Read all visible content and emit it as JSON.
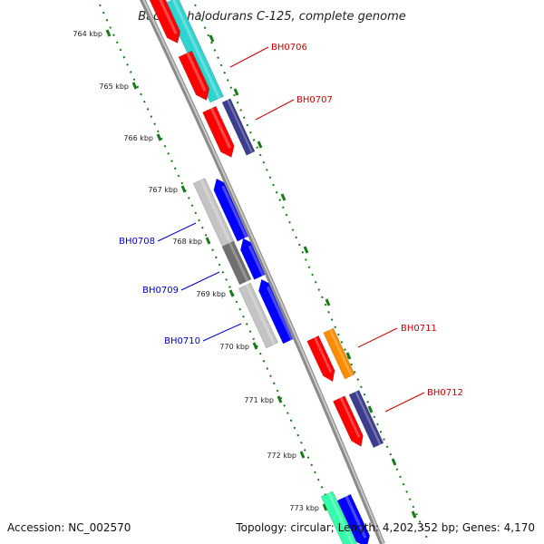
{
  "title": "Bacillus halodurans C-125, complete genome",
  "footer": {
    "accession": "Accession: NC_002570",
    "summary": "Topology: circular; Length: 4,202,352 bp; Genes: 4,170"
  },
  "ticks": [
    "764 kbp",
    "765 kbp",
    "766 kbp",
    "767 kbp",
    "768 kbp",
    "769 kbp",
    "770 kbp",
    "771 kbp",
    "772 kbp",
    "773 kbp"
  ],
  "gene_labels": {
    "forward": [
      "BH0706",
      "BH0707",
      "BH0711",
      "BH0712"
    ],
    "reverse": [
      "BH0708",
      "BH0709",
      "BH0710"
    ]
  },
  "colors": {
    "forward_label": "#cc0000",
    "reverse_label": "#0000cc",
    "tick_marks": "#1a7a1a",
    "backbone": "#888888",
    "red": "#ff0000",
    "cyan": "#2fd3cf",
    "orange": "#ff8c00",
    "blue": "#0000ff",
    "navy": "#3d3d8f",
    "grey": "#c4c4c4",
    "darkgrey": "#707070",
    "mint": "#33ffaa"
  }
}
